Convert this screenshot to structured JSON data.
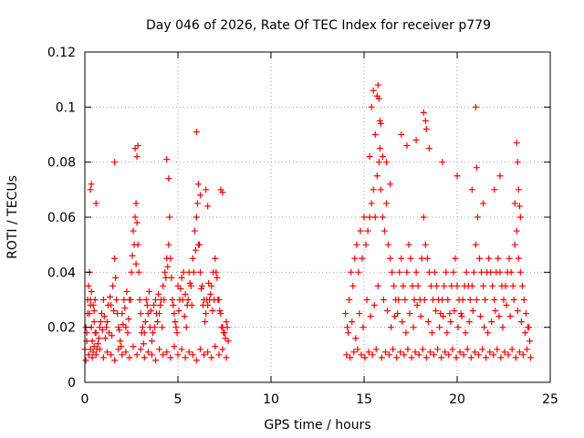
{
  "chart_data": {
    "type": "scatter",
    "title": "Day 046 of 2026, Rate Of TEC Index for receiver p779",
    "xlabel": "GPS time / hours",
    "ylabel": "ROTI / TECUs",
    "xlim": [
      0,
      25
    ],
    "ylim": [
      0,
      0.12
    ],
    "xticks": [
      0,
      5,
      10,
      15,
      20,
      25
    ],
    "xtick_labels": [
      "0",
      "5",
      "10",
      "15",
      "20",
      "25"
    ],
    "yticks": [
      0,
      0.02,
      0.04,
      0.06,
      0.08,
      0.1,
      0.12
    ],
    "ytick_labels": [
      "0",
      "0.02",
      "0.04",
      "0.06",
      "0.08",
      "0.1",
      "0.12"
    ],
    "grid": true,
    "marker": "+",
    "series": [
      {
        "name": "ROTI",
        "color": "#ff0000",
        "x": [
          0.0,
          0.1,
          0.15,
          0.2,
          0.25,
          0.3,
          0.35,
          0.4,
          0.45,
          0.5,
          0.55,
          0.6,
          0.7,
          0.8,
          0.9,
          1.0,
          1.1,
          1.2,
          1.3,
          1.4,
          1.5,
          1.6,
          1.7,
          1.8,
          1.9,
          2.0,
          2.1,
          2.2,
          2.3,
          2.4,
          2.5,
          2.6,
          2.7,
          2.75,
          2.8,
          2.85,
          2.9,
          3.0,
          3.1,
          3.2,
          3.3,
          3.4,
          3.5,
          3.6,
          3.7,
          3.8,
          3.9,
          4.0,
          4.1,
          4.2,
          4.3,
          4.4,
          4.5,
          4.55,
          4.6,
          4.7,
          4.8,
          4.9,
          5.0,
          5.1,
          5.2,
          5.3,
          5.4,
          5.5,
          5.6,
          5.7,
          5.8,
          5.9,
          6.0,
          6.05,
          6.1,
          6.2,
          6.3,
          6.4,
          6.5,
          6.6,
          6.7,
          6.8,
          6.9,
          7.0,
          7.1,
          7.2,
          7.3,
          7.4,
          7.5,
          7.6,
          7.7,
          0.05,
          0.2,
          0.3,
          0.4,
          0.45,
          0.5,
          0.6,
          0.8,
          1.0,
          1.2,
          1.4,
          1.6,
          1.8,
          2.0,
          2.2,
          2.4,
          2.6,
          2.8,
          3.0,
          3.2,
          3.4,
          3.6,
          3.8,
          4.0,
          4.2,
          4.4,
          4.6,
          4.8,
          5.0,
          5.2,
          5.4,
          5.6,
          5.8,
          6.0,
          6.2,
          6.4,
          6.6,
          6.8,
          7.0,
          7.2,
          7.4,
          7.6,
          0.3,
          0.35,
          0.6,
          1.6,
          2.7,
          2.8,
          2.85,
          4.4,
          4.5,
          6.0,
          6.1,
          6.2,
          6.5,
          6.6,
          7.3,
          7.4,
          0.05,
          0.1,
          0.15,
          0.25,
          0.3,
          0.35,
          0.5,
          0.55,
          0.65,
          0.75,
          0.85,
          0.95,
          1.05,
          1.15,
          1.25,
          1.35,
          1.45,
          1.55,
          1.65,
          1.75,
          1.85,
          1.95,
          2.05,
          2.15,
          2.25,
          2.35,
          2.45,
          2.55,
          2.65,
          2.75,
          2.95,
          3.05,
          3.15,
          3.25,
          3.35,
          3.45,
          3.55,
          3.65,
          3.75,
          3.85,
          3.95,
          4.05,
          4.15,
          4.25,
          4.35,
          4.45,
          4.65,
          4.75,
          4.85,
          4.95,
          5.05,
          5.15,
          5.25,
          5.35,
          5.45,
          5.55,
          5.65,
          5.75,
          5.85,
          5.95,
          6.15,
          6.25,
          6.35,
          6.45,
          6.55,
          6.65,
          6.75,
          6.85,
          6.95,
          7.05,
          7.15,
          7.25,
          7.35,
          7.45,
          7.55,
          7.65,
          14.0,
          14.1,
          14.2,
          14.3,
          14.4,
          14.5,
          14.6,
          14.7,
          14.8,
          14.9,
          15.0,
          15.1,
          15.2,
          15.3,
          15.4,
          15.5,
          15.6,
          15.7,
          15.8,
          15.85,
          15.9,
          16.0,
          16.1,
          16.2,
          16.3,
          16.4,
          16.5,
          16.6,
          16.7,
          16.8,
          16.9,
          17.0,
          17.1,
          17.2,
          17.3,
          17.4,
          17.5,
          17.6,
          17.7,
          17.8,
          17.9,
          18.0,
          18.1,
          18.2,
          18.3,
          18.4,
          18.5,
          18.6,
          18.7,
          18.8,
          18.9,
          19.0,
          19.1,
          19.2,
          19.3,
          19.4,
          19.5,
          19.6,
          19.7,
          19.8,
          19.9,
          20.0,
          20.1,
          20.2,
          20.3,
          20.4,
          20.5,
          20.6,
          20.7,
          20.8,
          20.9,
          21.0,
          21.1,
          21.2,
          21.3,
          21.4,
          21.5,
          21.6,
          21.7,
          21.8,
          21.9,
          22.0,
          22.1,
          22.2,
          22.3,
          22.4,
          22.5,
          22.6,
          22.7,
          22.8,
          22.9,
          23.0,
          23.1,
          23.2,
          23.3,
          23.4,
          23.5,
          23.6,
          23.7,
          23.8,
          23.9,
          14.05,
          14.25,
          14.45,
          14.65,
          14.85,
          15.05,
          15.25,
          15.45,
          15.65,
          15.95,
          16.15,
          16.35,
          16.55,
          16.75,
          16.95,
          17.15,
          17.35,
          17.55,
          17.75,
          17.95,
          18.15,
          18.35,
          18.55,
          18.75,
          18.95,
          19.15,
          19.35,
          19.55,
          19.75,
          19.95,
          20.15,
          20.35,
          20.55,
          20.75,
          20.95,
          21.15,
          21.35,
          21.55,
          21.75,
          21.95,
          22.15,
          22.35,
          22.55,
          22.75,
          22.95,
          23.15,
          23.35,
          23.55,
          23.75,
          23.95,
          15.3,
          15.4,
          15.5,
          15.6,
          15.7,
          15.75,
          15.8,
          15.85,
          15.9,
          16.0,
          16.2,
          16.4,
          17.0,
          17.3,
          17.8,
          18.2,
          18.3,
          18.35,
          18.5,
          19.2,
          20.0,
          20.8,
          21.0,
          21.05,
          21.4,
          22.0,
          22.3,
          23.1,
          23.2,
          23.25,
          23.3,
          23.35,
          23.4,
          14.15,
          14.35,
          14.55,
          14.75,
          14.95,
          15.15,
          15.35,
          15.55,
          15.75,
          16.05,
          16.25,
          16.45,
          16.65,
          16.85,
          17.05,
          17.25,
          17.45,
          17.65,
          17.85,
          18.05,
          18.25,
          18.45,
          18.65,
          18.85,
          19.05,
          19.25,
          19.45,
          19.65,
          19.85,
          20.05,
          20.25,
          20.45,
          20.65,
          20.85,
          21.05,
          21.25,
          21.45,
          21.65,
          21.85,
          22.05,
          22.25,
          22.45,
          22.65,
          22.85,
          23.05,
          23.25,
          23.45,
          23.65,
          23.85
        ],
        "y": [
          0.012,
          0.018,
          0.025,
          0.035,
          0.04,
          0.03,
          0.02,
          0.015,
          0.028,
          0.022,
          0.03,
          0.018,
          0.014,
          0.02,
          0.025,
          0.03,
          0.016,
          0.022,
          0.018,
          0.028,
          0.035,
          0.045,
          0.03,
          0.02,
          0.015,
          0.025,
          0.03,
          0.02,
          0.018,
          0.03,
          0.04,
          0.055,
          0.06,
          0.065,
          0.058,
          0.05,
          0.04,
          0.025,
          0.02,
          0.018,
          0.03,
          0.025,
          0.02,
          0.015,
          0.028,
          0.03,
          0.022,
          0.025,
          0.03,
          0.035,
          0.04,
          0.045,
          0.05,
          0.06,
          0.045,
          0.03,
          0.025,
          0.02,
          0.035,
          0.03,
          0.038,
          0.04,
          0.032,
          0.028,
          0.04,
          0.035,
          0.045,
          0.055,
          0.06,
          0.065,
          0.05,
          0.04,
          0.035,
          0.03,
          0.025,
          0.028,
          0.03,
          0.035,
          0.04,
          0.045,
          0.038,
          0.03,
          0.025,
          0.02,
          0.018,
          0.022,
          0.015,
          0.008,
          0.01,
          0.012,
          0.009,
          0.011,
          0.013,
          0.01,
          0.012,
          0.009,
          0.011,
          0.01,
          0.008,
          0.012,
          0.01,
          0.011,
          0.009,
          0.013,
          0.01,
          0.012,
          0.009,
          0.011,
          0.01,
          0.008,
          0.012,
          0.01,
          0.011,
          0.009,
          0.013,
          0.01,
          0.012,
          0.009,
          0.011,
          0.01,
          0.008,
          0.012,
          0.01,
          0.011,
          0.009,
          0.013,
          0.01,
          0.012,
          0.009,
          0.07,
          0.072,
          0.065,
          0.08,
          0.085,
          0.082,
          0.086,
          0.081,
          0.074,
          0.091,
          0.072,
          0.068,
          0.07,
          0.064,
          0.07,
          0.069,
          0.02,
          0.015,
          0.03,
          0.025,
          0.028,
          0.033,
          0.026,
          0.018,
          0.012,
          0.016,
          0.022,
          0.019,
          0.024,
          0.02,
          0.028,
          0.031,
          0.017,
          0.026,
          0.038,
          0.025,
          0.019,
          0.013,
          0.021,
          0.027,
          0.033,
          0.023,
          0.03,
          0.046,
          0.05,
          0.043,
          0.03,
          0.018,
          0.014,
          0.022,
          0.028,
          0.033,
          0.026,
          0.018,
          0.02,
          0.025,
          0.032,
          0.028,
          0.02,
          0.03,
          0.038,
          0.042,
          0.038,
          0.028,
          0.022,
          0.018,
          0.026,
          0.034,
          0.03,
          0.024,
          0.02,
          0.03,
          0.036,
          0.028,
          0.04,
          0.048,
          0.05,
          0.034,
          0.028,
          0.022,
          0.03,
          0.036,
          0.032,
          0.026,
          0.03,
          0.04,
          0.03,
          0.026,
          0.02,
          0.018,
          0.016,
          0.02,
          0.025,
          0.02,
          0.03,
          0.04,
          0.035,
          0.045,
          0.05,
          0.04,
          0.055,
          0.045,
          0.06,
          0.05,
          0.055,
          0.06,
          0.065,
          0.07,
          0.06,
          0.075,
          0.08,
          0.085,
          0.07,
          0.06,
          0.055,
          0.065,
          0.05,
          0.045,
          0.04,
          0.035,
          0.03,
          0.025,
          0.04,
          0.045,
          0.035,
          0.03,
          0.04,
          0.05,
          0.045,
          0.035,
          0.03,
          0.04,
          0.035,
          0.03,
          0.045,
          0.06,
          0.05,
          0.045,
          0.04,
          0.035,
          0.03,
          0.04,
          0.035,
          0.03,
          0.025,
          0.03,
          0.035,
          0.04,
          0.03,
          0.025,
          0.035,
          0.04,
          0.045,
          0.035,
          0.03,
          0.025,
          0.03,
          0.035,
          0.04,
          0.035,
          0.03,
          0.035,
          0.04,
          0.05,
          0.06,
          0.045,
          0.04,
          0.035,
          0.03,
          0.04,
          0.045,
          0.04,
          0.035,
          0.03,
          0.04,
          0.045,
          0.04,
          0.035,
          0.03,
          0.035,
          0.04,
          0.045,
          0.04,
          0.035,
          0.05,
          0.055,
          0.045,
          0.04,
          0.035,
          0.03,
          0.025,
          0.02,
          0.015,
          0.01,
          0.009,
          0.011,
          0.012,
          0.01,
          0.009,
          0.011,
          0.01,
          0.012,
          0.009,
          0.011,
          0.01,
          0.012,
          0.009,
          0.011,
          0.01,
          0.012,
          0.009,
          0.011,
          0.01,
          0.012,
          0.009,
          0.011,
          0.01,
          0.012,
          0.009,
          0.011,
          0.01,
          0.012,
          0.009,
          0.011,
          0.01,
          0.012,
          0.009,
          0.011,
          0.01,
          0.012,
          0.009,
          0.011,
          0.01,
          0.012,
          0.009,
          0.011,
          0.01,
          0.012,
          0.009,
          0.011,
          0.01,
          0.012,
          0.009,
          0.082,
          0.1,
          0.106,
          0.09,
          0.104,
          0.108,
          0.103,
          0.095,
          0.094,
          0.082,
          0.08,
          0.072,
          0.09,
          0.086,
          0.088,
          0.098,
          0.095,
          0.092,
          0.085,
          0.08,
          0.075,
          0.07,
          0.1,
          0.078,
          0.065,
          0.07,
          0.075,
          0.065,
          0.087,
          0.08,
          0.07,
          0.064,
          0.06,
          0.018,
          0.022,
          0.016,
          0.025,
          0.02,
          0.03,
          0.024,
          0.028,
          0.035,
          0.03,
          0.026,
          0.02,
          0.024,
          0.03,
          0.022,
          0.018,
          0.025,
          0.02,
          0.028,
          0.024,
          0.03,
          0.022,
          0.018,
          0.026,
          0.02,
          0.024,
          0.018,
          0.022,
          0.026,
          0.02,
          0.024,
          0.018,
          0.022,
          0.026,
          0.03,
          0.024,
          0.02,
          0.018,
          0.022,
          0.026,
          0.024,
          0.02,
          0.028,
          0.024,
          0.03,
          0.026,
          0.022,
          0.018,
          0.02
        ]
      }
    ]
  }
}
